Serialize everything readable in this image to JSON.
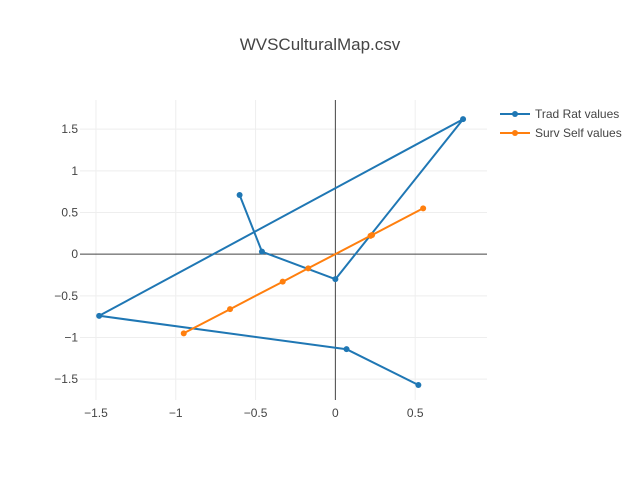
{
  "chart_data": {
    "type": "line",
    "title": "WVSCulturalMap.csv",
    "xlabel": "",
    "ylabel": "",
    "xlim": [
      -1.6,
      0.95
    ],
    "ylim": [
      -1.75,
      1.85
    ],
    "xticks": [
      -1.5,
      -1,
      -0.5,
      0,
      0.5
    ],
    "xtick_labels": [
      "−1.5",
      "−1",
      "−0.5",
      "0",
      "0.5"
    ],
    "yticks": [
      -1.5,
      -1,
      -0.5,
      0,
      0.5,
      1,
      1.5
    ],
    "ytick_labels": [
      "−1.5",
      "−1",
      "−0.5",
      "0",
      "0.5",
      "1",
      "1.5"
    ],
    "grid": true,
    "zero_lines": true,
    "legend_position": "top-right",
    "series": [
      {
        "name": "Trad Rat values",
        "color": "#1f77b4",
        "points": [
          {
            "x": -0.6,
            "y": 0.71
          },
          {
            "x": -0.46,
            "y": 0.03
          },
          {
            "x": 0.0,
            "y": -0.3
          },
          {
            "x": 0.8,
            "y": 1.62
          },
          {
            "x": -1.48,
            "y": -0.74
          },
          {
            "x": 0.07,
            "y": -1.14
          },
          {
            "x": 0.52,
            "y": -1.57
          }
        ]
      },
      {
        "name": "Surv Self values",
        "color": "#ff7f0e",
        "points": [
          {
            "x": -0.95,
            "y": -0.95
          },
          {
            "x": -0.66,
            "y": -0.66
          },
          {
            "x": -0.33,
            "y": -0.33
          },
          {
            "x": -0.17,
            "y": -0.17
          },
          {
            "x": 0.22,
            "y": 0.22
          },
          {
            "x": 0.23,
            "y": 0.23
          },
          {
            "x": 0.55,
            "y": 0.55
          }
        ]
      }
    ]
  }
}
